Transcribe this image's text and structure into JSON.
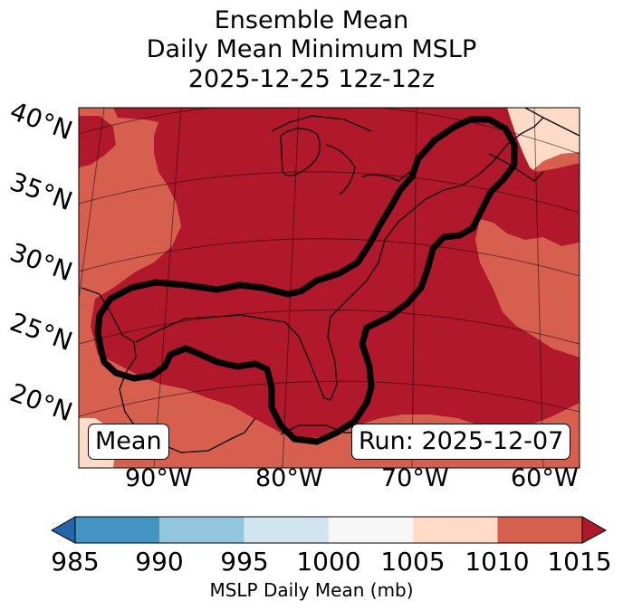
{
  "title": {
    "line1": "Ensemble Mean",
    "line2": "Daily Mean Minimum MSLP",
    "line3": "2025-12-25 12z-12z"
  },
  "map": {
    "lat_labels": [
      "40°N",
      "35°N",
      "30°N",
      "25°N",
      "20°N"
    ],
    "lon_labels": [
      "90°W",
      "80°W",
      "70°W",
      "60°W"
    ],
    "stat_label": "Mean",
    "run_label": "Run: 2025-12-07",
    "field": "MSLP",
    "contour_value_mb": 1015,
    "colors": {
      "above_1015": "#b2182b",
      "1010_1015": "#d6604d",
      "1005_1010": "#fddbc7",
      "contour": "#000000"
    }
  },
  "colorbar": {
    "label": "MSLP Daily Mean (mb)",
    "ticks": [
      "985",
      "990",
      "995",
      "1000",
      "1005",
      "1010",
      "1015"
    ],
    "bins": [
      {
        "from": 985,
        "to": 990,
        "color": "#4393c3"
      },
      {
        "from": 990,
        "to": 995,
        "color": "#92c5de"
      },
      {
        "from": 995,
        "to": 1000,
        "color": "#d1e5f0"
      },
      {
        "from": 1000,
        "to": 1005,
        "color": "#f7f7f7"
      },
      {
        "from": 1005,
        "to": 1010,
        "color": "#fddbc7"
      },
      {
        "from": 1010,
        "to": 1015,
        "color": "#d6604d"
      }
    ],
    "under_color": "#2166ac",
    "over_color": "#b2182b"
  }
}
